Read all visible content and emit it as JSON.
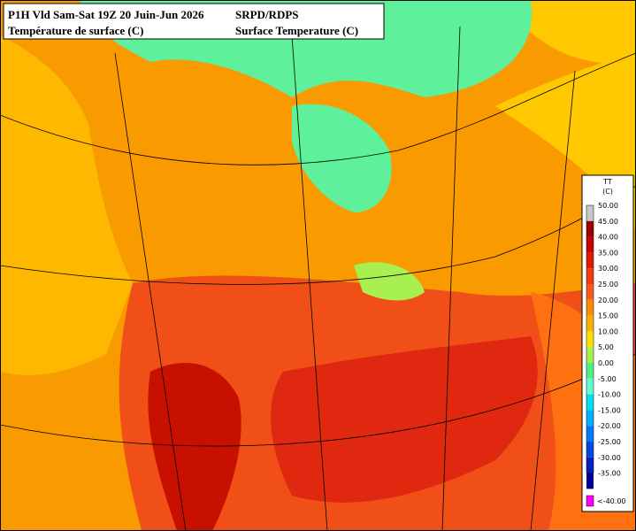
{
  "header": {
    "left_line1": "P1H Vld Sam-Sat 19Z 20 Juin-Jun 2026",
    "left_line2": "Température de surface (C)",
    "right_line1": "SRPD/RDPS",
    "right_line2": "Surface Temperature (C)"
  },
  "legend": {
    "title": "TT",
    "unit": "(C)",
    "entries": [
      {
        "label": "50.00",
        "color": "#c8c8c8"
      },
      {
        "label": "45.00",
        "color": "#9a0000"
      },
      {
        "label": "40.00",
        "color": "#c80000"
      },
      {
        "label": "35.00",
        "color": "#e01800"
      },
      {
        "label": "30.00",
        "color": "#f03a10"
      },
      {
        "label": "25.00",
        "color": "#ff5a1e"
      },
      {
        "label": "20.00",
        "color": "#ff8c00"
      },
      {
        "label": "15.00",
        "color": "#ffb000"
      },
      {
        "label": "10.00",
        "color": "#ffe000"
      },
      {
        "label": "5.00",
        "color": "#a8f050"
      },
      {
        "label": "0.00",
        "color": "#50f088"
      },
      {
        "label": "-5.00",
        "color": "#60ffd0"
      },
      {
        "label": "-10.00",
        "color": "#00e0f0"
      },
      {
        "label": "-15.00",
        "color": "#00b0ff"
      },
      {
        "label": "-20.00",
        "color": "#0078ff"
      },
      {
        "label": "-25.00",
        "color": "#0048e0"
      },
      {
        "label": "-30.00",
        "color": "#0020c0"
      },
      {
        "label": "-35.00",
        "color": "#000090"
      },
      {
        "label": "<-40.00",
        "color": "#ff00ff"
      }
    ]
  }
}
